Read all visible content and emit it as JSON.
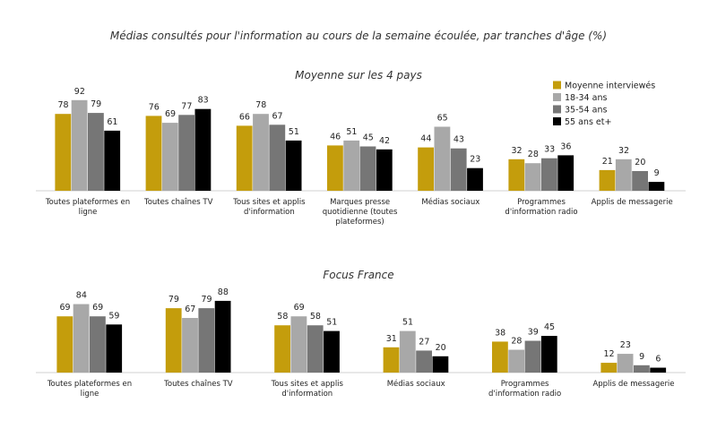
{
  "title": "Médias consultés pour l'information au cours de la semaine écoulée, par tranches d'âge (%)",
  "chart_data": [
    {
      "type": "bar",
      "title": "Moyenne sur les 4 pays",
      "categories": [
        "Toutes plateformes en ligne",
        "Toutes chaînes TV",
        "Tous sites et applis d'information",
        "Marques presse quotidienne (toutes plateformes)",
        "Médias sociaux",
        "Programmes d'information radio",
        "Applis de messagerie"
      ],
      "series": [
        {
          "name": "Moyenne interviewés",
          "color": "#c49d0c",
          "values": [
            78,
            76,
            66,
            46,
            44,
            32,
            21
          ]
        },
        {
          "name": "18-34 ans",
          "color": "#a8a8a8",
          "values": [
            92,
            69,
            78,
            51,
            65,
            28,
            32
          ]
        },
        {
          "name": "35-54 ans",
          "color": "#767676",
          "values": [
            79,
            77,
            67,
            45,
            43,
            33,
            20
          ]
        },
        {
          "name": "55 ans et+",
          "color": "#000000",
          "values": [
            61,
            83,
            51,
            42,
            23,
            36,
            9
          ]
        }
      ],
      "ylim": [
        0,
        100
      ],
      "legend": "top-right"
    },
    {
      "type": "bar",
      "title": "Focus France",
      "categories": [
        "Toutes plateformes en ligne",
        "Toutes chaînes TV",
        "Tous sites et applis d'information",
        "Médias sociaux",
        "Programmes d'information radio",
        "Applis de messagerie"
      ],
      "series": [
        {
          "color": "#c49d0c",
          "values": [
            69,
            79,
            58,
            31,
            38,
            12
          ]
        },
        {
          "color": "#a8a8a8",
          "values": [
            84,
            67,
            69,
            51,
            28,
            23
          ]
        },
        {
          "color": "#767676",
          "values": [
            69,
            79,
            58,
            27,
            39,
            9
          ]
        },
        {
          "color": "#000000",
          "values": [
            59,
            88,
            51,
            20,
            45,
            6
          ]
        }
      ],
      "ylim": [
        0,
        100
      ]
    }
  ]
}
